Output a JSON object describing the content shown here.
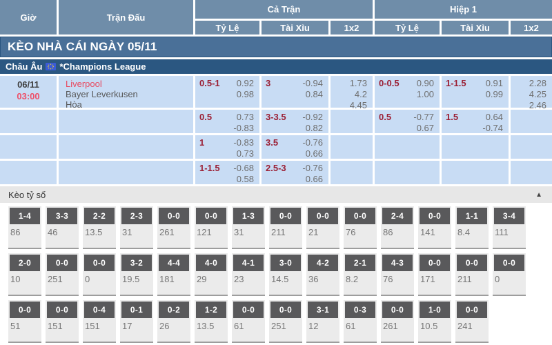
{
  "header": {
    "col_time": "Giờ",
    "col_match": "Trận Đấu",
    "group_full": "Cả Trận",
    "group_half": "Hiệp 1",
    "sub_handicap": "Tỷ Lệ",
    "sub_overunder": "Tài Xỉu",
    "sub_1x2": "1x2"
  },
  "banner": {
    "title": "KÈO NHÀ CÁI NGÀY 05/11"
  },
  "league": {
    "region": "Châu Âu",
    "flag_icon": "eu-flag",
    "name": "*Champions League"
  },
  "match": {
    "date": "06/11",
    "time": "03:00",
    "home": "Liverpool",
    "away": "Bayer Leverkusen",
    "draw": "Hòa"
  },
  "colors": {
    "accent_red": "#9B1F34",
    "home_red": "#E8495F",
    "header_blue": "#6F8DA9",
    "banner_blue": "#4A7098",
    "league_navy": "#2B5781",
    "row_blue": "#C8DCF4",
    "score_box_gray": "#59595B"
  },
  "odds_rows": [
    {
      "ft_hdp": {
        "line": "0.5-1",
        "values": [
          "0.92",
          "0.98"
        ]
      },
      "ft_ou": {
        "line": "3",
        "values": [
          "-0.94",
          "0.84"
        ]
      },
      "ft_1x2": [
        "1.73",
        "4.2",
        "4.45"
      ],
      "h1_hdp": {
        "line": "0-0.5",
        "values": [
          "0.90",
          "1.00"
        ]
      },
      "h1_ou": {
        "line": "1-1.5",
        "values": [
          "0.91",
          "0.99"
        ]
      },
      "h1_1x2": [
        "2.28",
        "4.25",
        "2.46"
      ]
    },
    {
      "ft_hdp": {
        "line": "0.5",
        "values": [
          "0.73",
          "-0.83"
        ]
      },
      "ft_ou": {
        "line": "3-3.5",
        "values": [
          "-0.92",
          "0.82"
        ]
      },
      "ft_1x2": [],
      "h1_hdp": {
        "line": "0.5",
        "values": [
          "-0.77",
          "0.67"
        ]
      },
      "h1_ou": {
        "line": "1.5",
        "values": [
          "0.64",
          "-0.74"
        ]
      },
      "h1_1x2": []
    },
    {
      "ft_hdp": {
        "line": "1",
        "values": [
          "-0.83",
          "0.73"
        ]
      },
      "ft_ou": {
        "line": "3.5",
        "values": [
          "-0.76",
          "0.66"
        ]
      },
      "ft_1x2": [],
      "h1_hdp": null,
      "h1_ou": null,
      "h1_1x2": []
    },
    {
      "ft_hdp": {
        "line": "1-1.5",
        "values": [
          "-0.68",
          "0.58"
        ]
      },
      "ft_ou": {
        "line": "2.5-3",
        "values": [
          "-0.76",
          "0.66"
        ]
      },
      "ft_1x2": [],
      "h1_hdp": null,
      "h1_ou": null,
      "h1_1x2": []
    }
  ],
  "score_section": {
    "title": "Kèo tỷ số",
    "collapse_icon": "▲",
    "rows": [
      [
        {
          "score": "1-4",
          "odds": "86"
        },
        {
          "score": "3-3",
          "odds": "46"
        },
        {
          "score": "2-2",
          "odds": "13.5"
        },
        {
          "score": "2-3",
          "odds": "31"
        },
        {
          "score": "0-0",
          "odds": "261"
        },
        {
          "score": "0-0",
          "odds": "121"
        },
        {
          "score": "1-3",
          "odds": "31"
        },
        {
          "score": "0-0",
          "odds": "211"
        },
        {
          "score": "0-0",
          "odds": "21"
        },
        {
          "score": "0-0",
          "odds": "76"
        },
        {
          "score": "2-4",
          "odds": "86"
        },
        {
          "score": "0-0",
          "odds": "141"
        },
        {
          "score": "1-1",
          "odds": "8.4"
        },
        {
          "score": "3-4",
          "odds": "111"
        }
      ],
      [
        {
          "score": "2-0",
          "odds": "10"
        },
        {
          "score": "0-0",
          "odds": "251"
        },
        {
          "score": "0-0",
          "odds": "0"
        },
        {
          "score": "3-2",
          "odds": "19.5"
        },
        {
          "score": "4-4",
          "odds": "181"
        },
        {
          "score": "4-0",
          "odds": "29"
        },
        {
          "score": "4-1",
          "odds": "23"
        },
        {
          "score": "3-0",
          "odds": "14.5"
        },
        {
          "score": "4-2",
          "odds": "36"
        },
        {
          "score": "2-1",
          "odds": "8.2"
        },
        {
          "score": "4-3",
          "odds": "76"
        },
        {
          "score": "0-0",
          "odds": "171"
        },
        {
          "score": "0-0",
          "odds": "211"
        },
        {
          "score": "0-0",
          "odds": "0"
        }
      ],
      [
        {
          "score": "0-0",
          "odds": "51"
        },
        {
          "score": "0-0",
          "odds": "151"
        },
        {
          "score": "0-4",
          "odds": "151"
        },
        {
          "score": "0-1",
          "odds": "17"
        },
        {
          "score": "0-2",
          "odds": "26"
        },
        {
          "score": "1-2",
          "odds": "13.5"
        },
        {
          "score": "0-0",
          "odds": "61"
        },
        {
          "score": "0-0",
          "odds": "251"
        },
        {
          "score": "3-1",
          "odds": "12"
        },
        {
          "score": "0-3",
          "odds": "61"
        },
        {
          "score": "0-0",
          "odds": "261"
        },
        {
          "score": "1-0",
          "odds": "10.5"
        },
        {
          "score": "0-0",
          "odds": "241"
        }
      ]
    ]
  }
}
